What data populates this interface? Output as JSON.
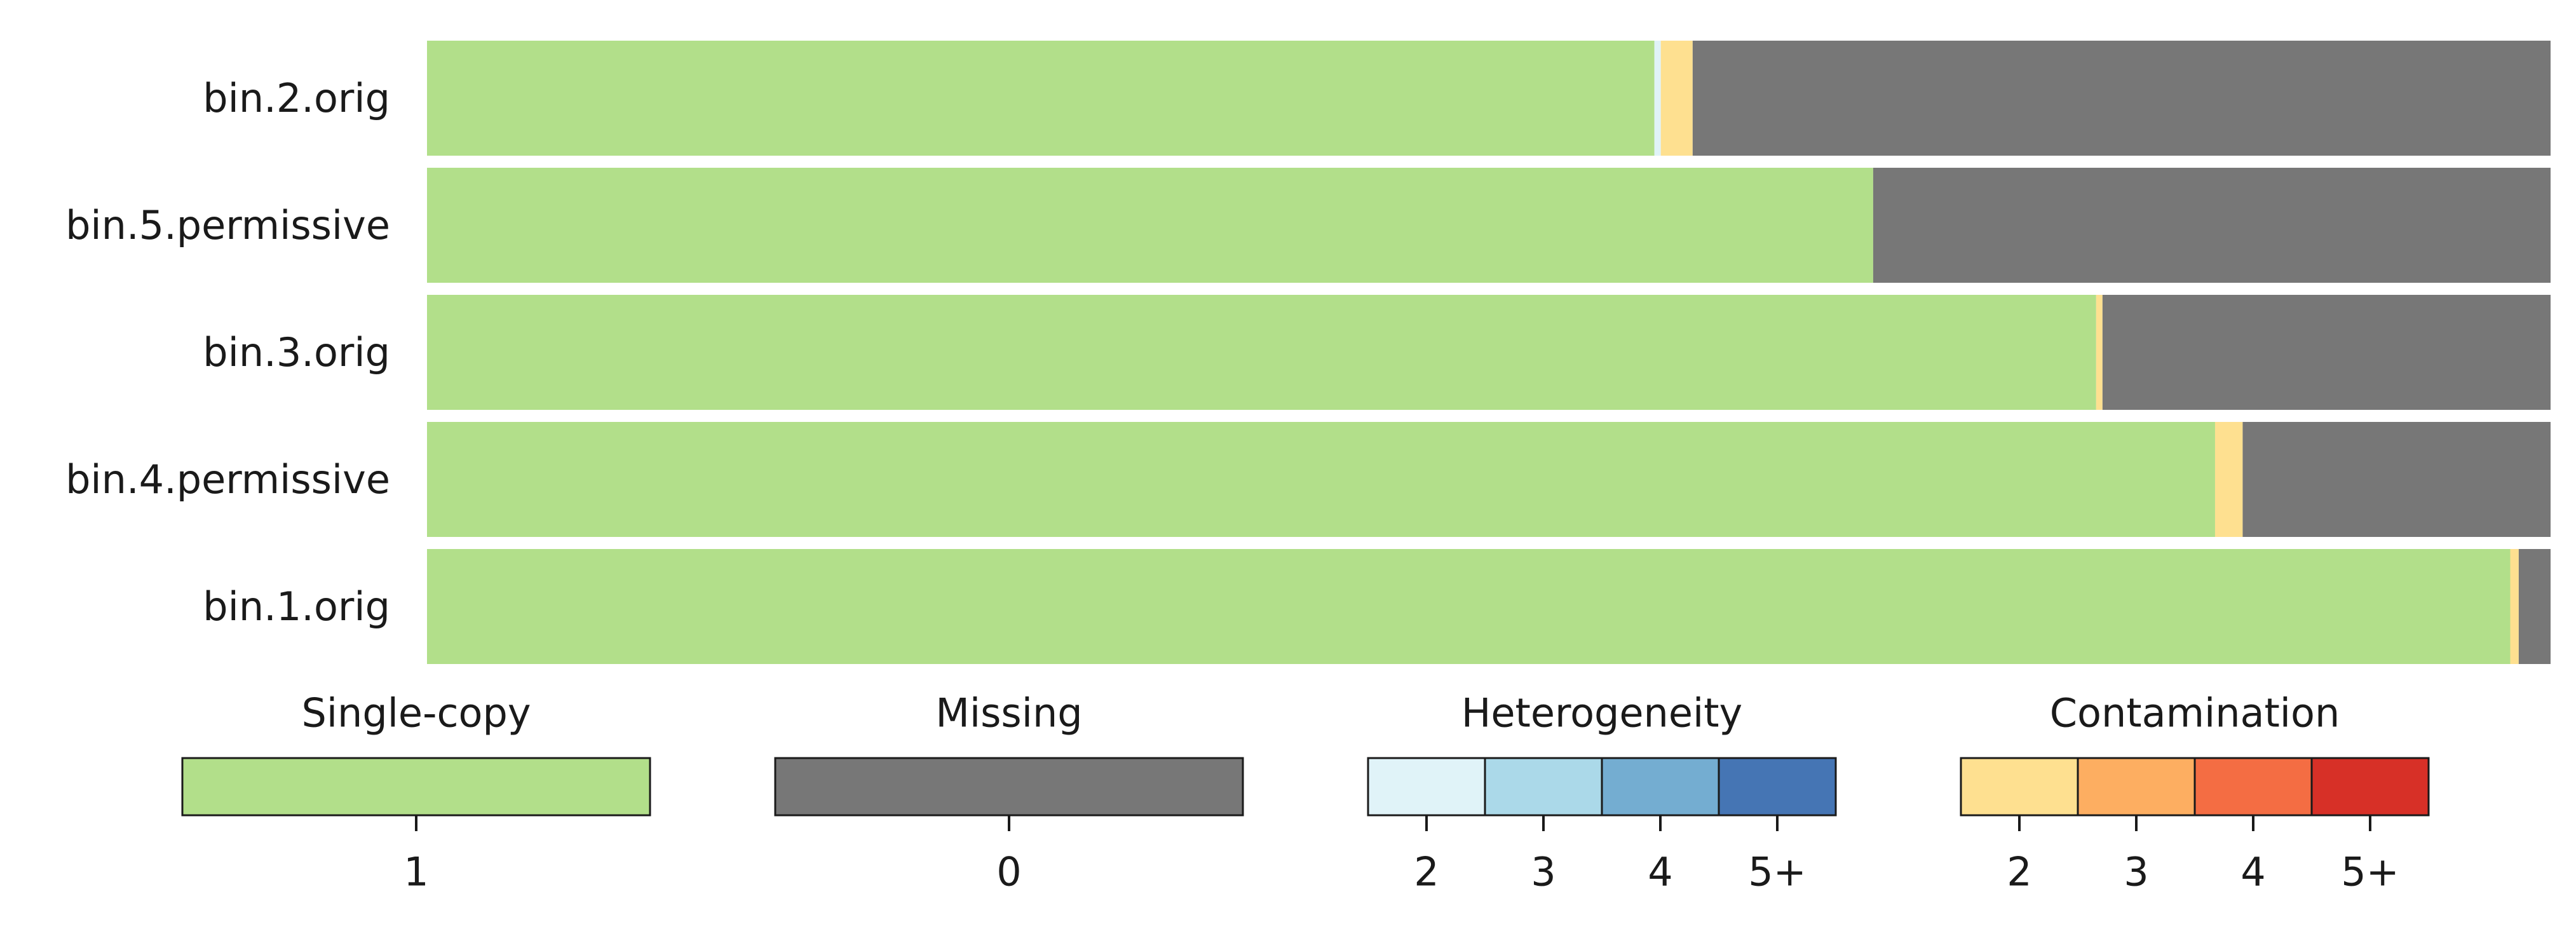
{
  "chart_data": {
    "type": "bar",
    "orientation": "horizontal",
    "stacked": true,
    "normalized": true,
    "categories": [
      "bin.2.orig",
      "bin.5.permissive",
      "bin.3.orig",
      "bin.4.permissive",
      "bin.1.orig"
    ],
    "series": [
      {
        "name": "Single-copy 1",
        "color": "#b2df8a",
        "values": [
          0.578,
          0.681,
          0.786,
          0.842,
          0.981
        ]
      },
      {
        "name": "Heterogeneity 2",
        "color": "#e0f3f8",
        "values": [
          0.003,
          0.0,
          0.0,
          0.0,
          0.0
        ]
      },
      {
        "name": "Contamination 2",
        "color": "#fee090",
        "values": [
          0.015,
          0.0,
          0.003,
          0.013,
          0.004
        ]
      },
      {
        "name": "Missing 0",
        "color": "#777777",
        "values": [
          0.404,
          0.319,
          0.211,
          0.145,
          0.015
        ]
      }
    ],
    "xlim": [
      0,
      1
    ],
    "grid": false,
    "legend": {
      "placement": "bottom",
      "groups": [
        {
          "title": "Single-copy",
          "swatches": [
            {
              "label": "1",
              "color": "#b2df8a"
            }
          ]
        },
        {
          "title": "Missing",
          "swatches": [
            {
              "label": "0",
              "color": "#777777"
            }
          ]
        },
        {
          "title": "Heterogeneity",
          "swatches": [
            {
              "label": "2",
              "color": "#e0f3f8"
            },
            {
              "label": "3",
              "color": "#abd9e9"
            },
            {
              "label": "4",
              "color": "#74add1"
            },
            {
              "label": "5+",
              "color": "#4575b4"
            }
          ]
        },
        {
          "title": "Contamination",
          "swatches": [
            {
              "label": "2",
              "color": "#fee090"
            },
            {
              "label": "3",
              "color": "#fdae61"
            },
            {
              "label": "4",
              "color": "#f46d43"
            },
            {
              "label": "5+",
              "color": "#d73027"
            }
          ]
        }
      ]
    }
  }
}
